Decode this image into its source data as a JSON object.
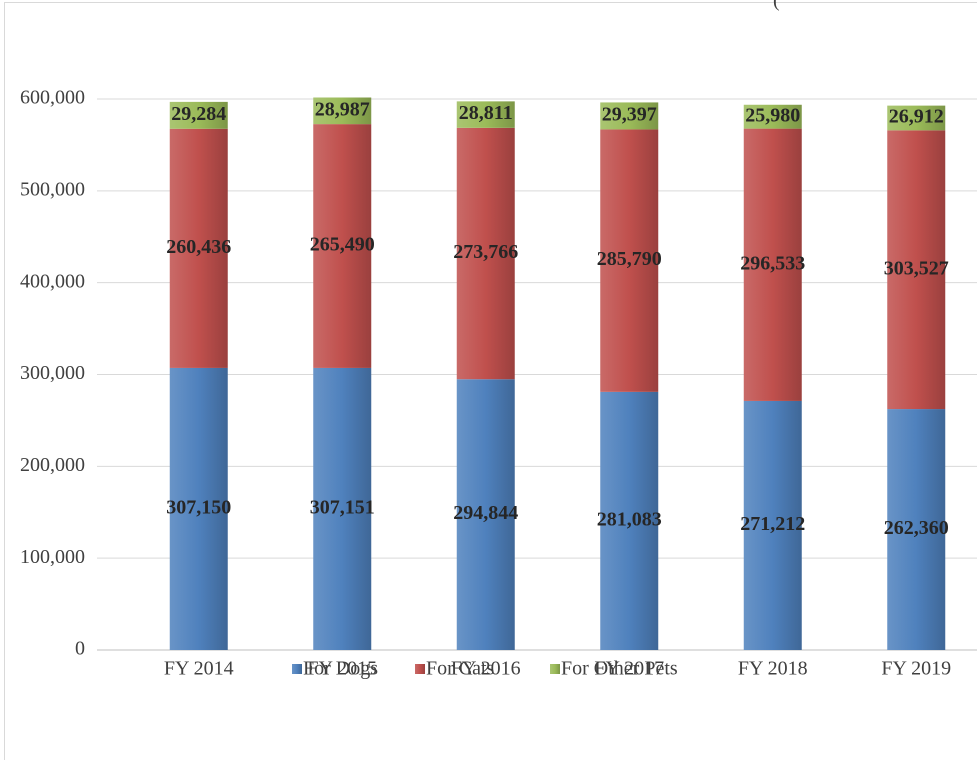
{
  "chart_data": {
    "type": "bar",
    "stacked": true,
    "title": "(",
    "categories": [
      "FY 2014",
      "FY 2015",
      "FY 2016",
      "FY 2017",
      "FY 2018",
      "FY 2019"
    ],
    "series": [
      {
        "name": "For Dogs",
        "color": "#4f81bd",
        "values": [
          307150,
          307151,
          294844,
          281083,
          271212,
          262360
        ],
        "value_labels": [
          "307,150",
          "307,151",
          "294,844",
          "281,083",
          "271,212",
          "262,360"
        ]
      },
      {
        "name": "For Cats",
        "color": "#c0504d",
        "values": [
          260436,
          265490,
          273766,
          285790,
          296533,
          303527
        ],
        "value_labels": [
          "260,436",
          "265,490",
          "273,766",
          "285,790",
          "296,533",
          "303,527"
        ]
      },
      {
        "name": "For Other Pets",
        "color": "#9bbb59",
        "values": [
          29284,
          28987,
          28811,
          29397,
          25980,
          26912
        ],
        "value_labels": [
          "29,284",
          "28,987",
          "28,811",
          "29,397",
          "25,980",
          "26,912"
        ]
      }
    ],
    "ylim": [
      0,
      600000
    ],
    "yticks": [
      0,
      {
        "value": 100000,
        "label": "100,000"
      },
      {
        "value": 200000,
        "label": "200,000"
      },
      {
        "value": 300000,
        "label": "300,000"
      },
      {
        "value": 400000,
        "label": "400,000"
      },
      {
        "value": 500000,
        "label": "500,000"
      },
      {
        "value": 600000,
        "label": "600,000"
      }
    ],
    "grid": true,
    "legend": "bottom"
  }
}
